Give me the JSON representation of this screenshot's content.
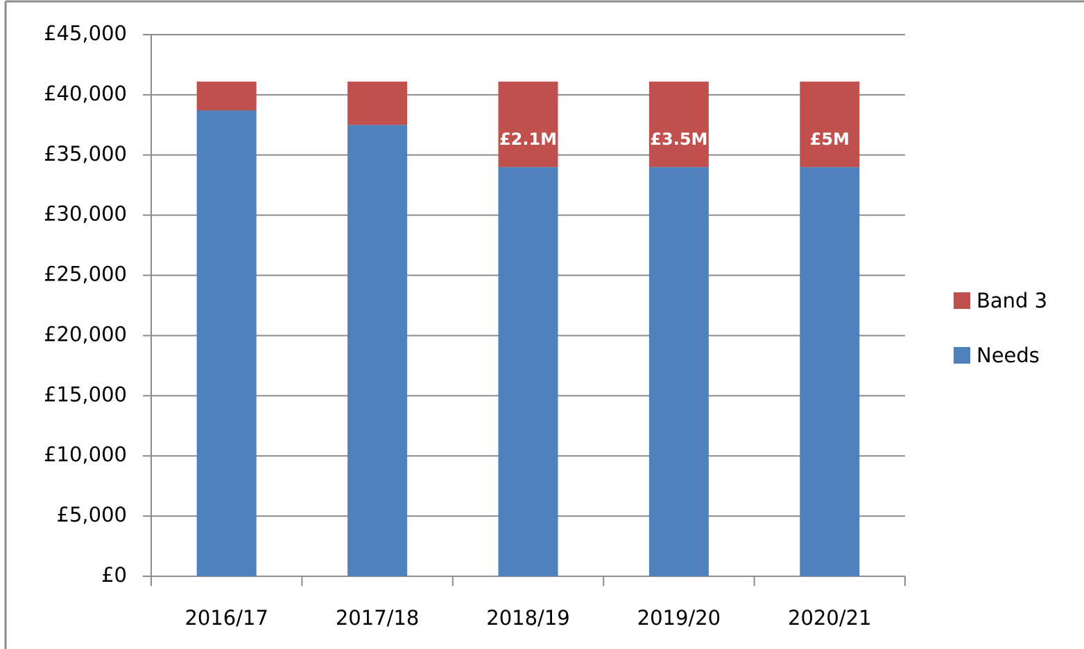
{
  "chart_data": {
    "type": "stacked_bar",
    "categories": [
      "2016/17",
      "2017/18",
      "2018/19",
      "2019/20",
      "2020/21"
    ],
    "series": [
      {
        "name": "Needs",
        "color": "#4f81bd",
        "values": [
          38700,
          37500,
          34000,
          34000,
          34000
        ]
      },
      {
        "name": "Band 3",
        "color": "#c0504d",
        "values": [
          2400,
          3600,
          7100,
          7100,
          7100
        ]
      }
    ],
    "annotations": [
      {
        "category": "2018/19",
        "text": "£2.1M"
      },
      {
        "category": "2019/20",
        "text": "£3.5M"
      },
      {
        "category": "2020/21",
        "text": "£5M"
      }
    ],
    "ylim": [
      0,
      45000
    ],
    "yticks": [
      {
        "value": 0,
        "label": "£0"
      },
      {
        "value": 5000,
        "label": "£5,000"
      },
      {
        "value": 10000,
        "label": "£10,000"
      },
      {
        "value": 15000,
        "label": "£15,000"
      },
      {
        "value": 20000,
        "label": "£20,000"
      },
      {
        "value": 25000,
        "label": "£25,000"
      },
      {
        "value": 30000,
        "label": "£30,000"
      },
      {
        "value": 35000,
        "label": "£35,000"
      },
      {
        "value": 40000,
        "label": "£40,000"
      },
      {
        "value": 45000,
        "label": "£45,000"
      }
    ],
    "grid": true,
    "legend": "right"
  }
}
